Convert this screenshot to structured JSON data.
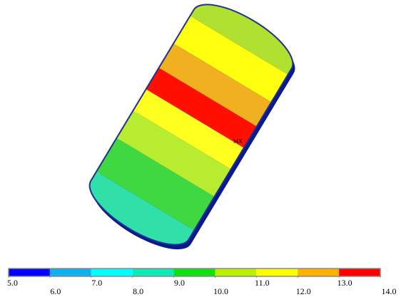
{
  "marker_label": "MX",
  "colorbar": {
    "ticks": [
      {
        "value": 5,
        "label": "5.0"
      },
      {
        "value": 6,
        "label": "6.0"
      },
      {
        "value": 7,
        "label": "7.0"
      },
      {
        "value": 8,
        "label": "8.0"
      },
      {
        "value": 9,
        "label": "9.0"
      },
      {
        "value": 10,
        "label": "10.0"
      },
      {
        "value": 11,
        "label": "11.0"
      },
      {
        "value": 12,
        "label": "12.0"
      },
      {
        "value": 13,
        "label": "13.0"
      },
      {
        "value": 14,
        "label": "14.0"
      }
    ],
    "colors": [
      "#0000ff",
      "#10b0ee",
      "#00ffff",
      "#10e8b8",
      "#10e010",
      "#b8f000",
      "#ffff00",
      "#ffb000",
      "#ff0000"
    ]
  }
}
